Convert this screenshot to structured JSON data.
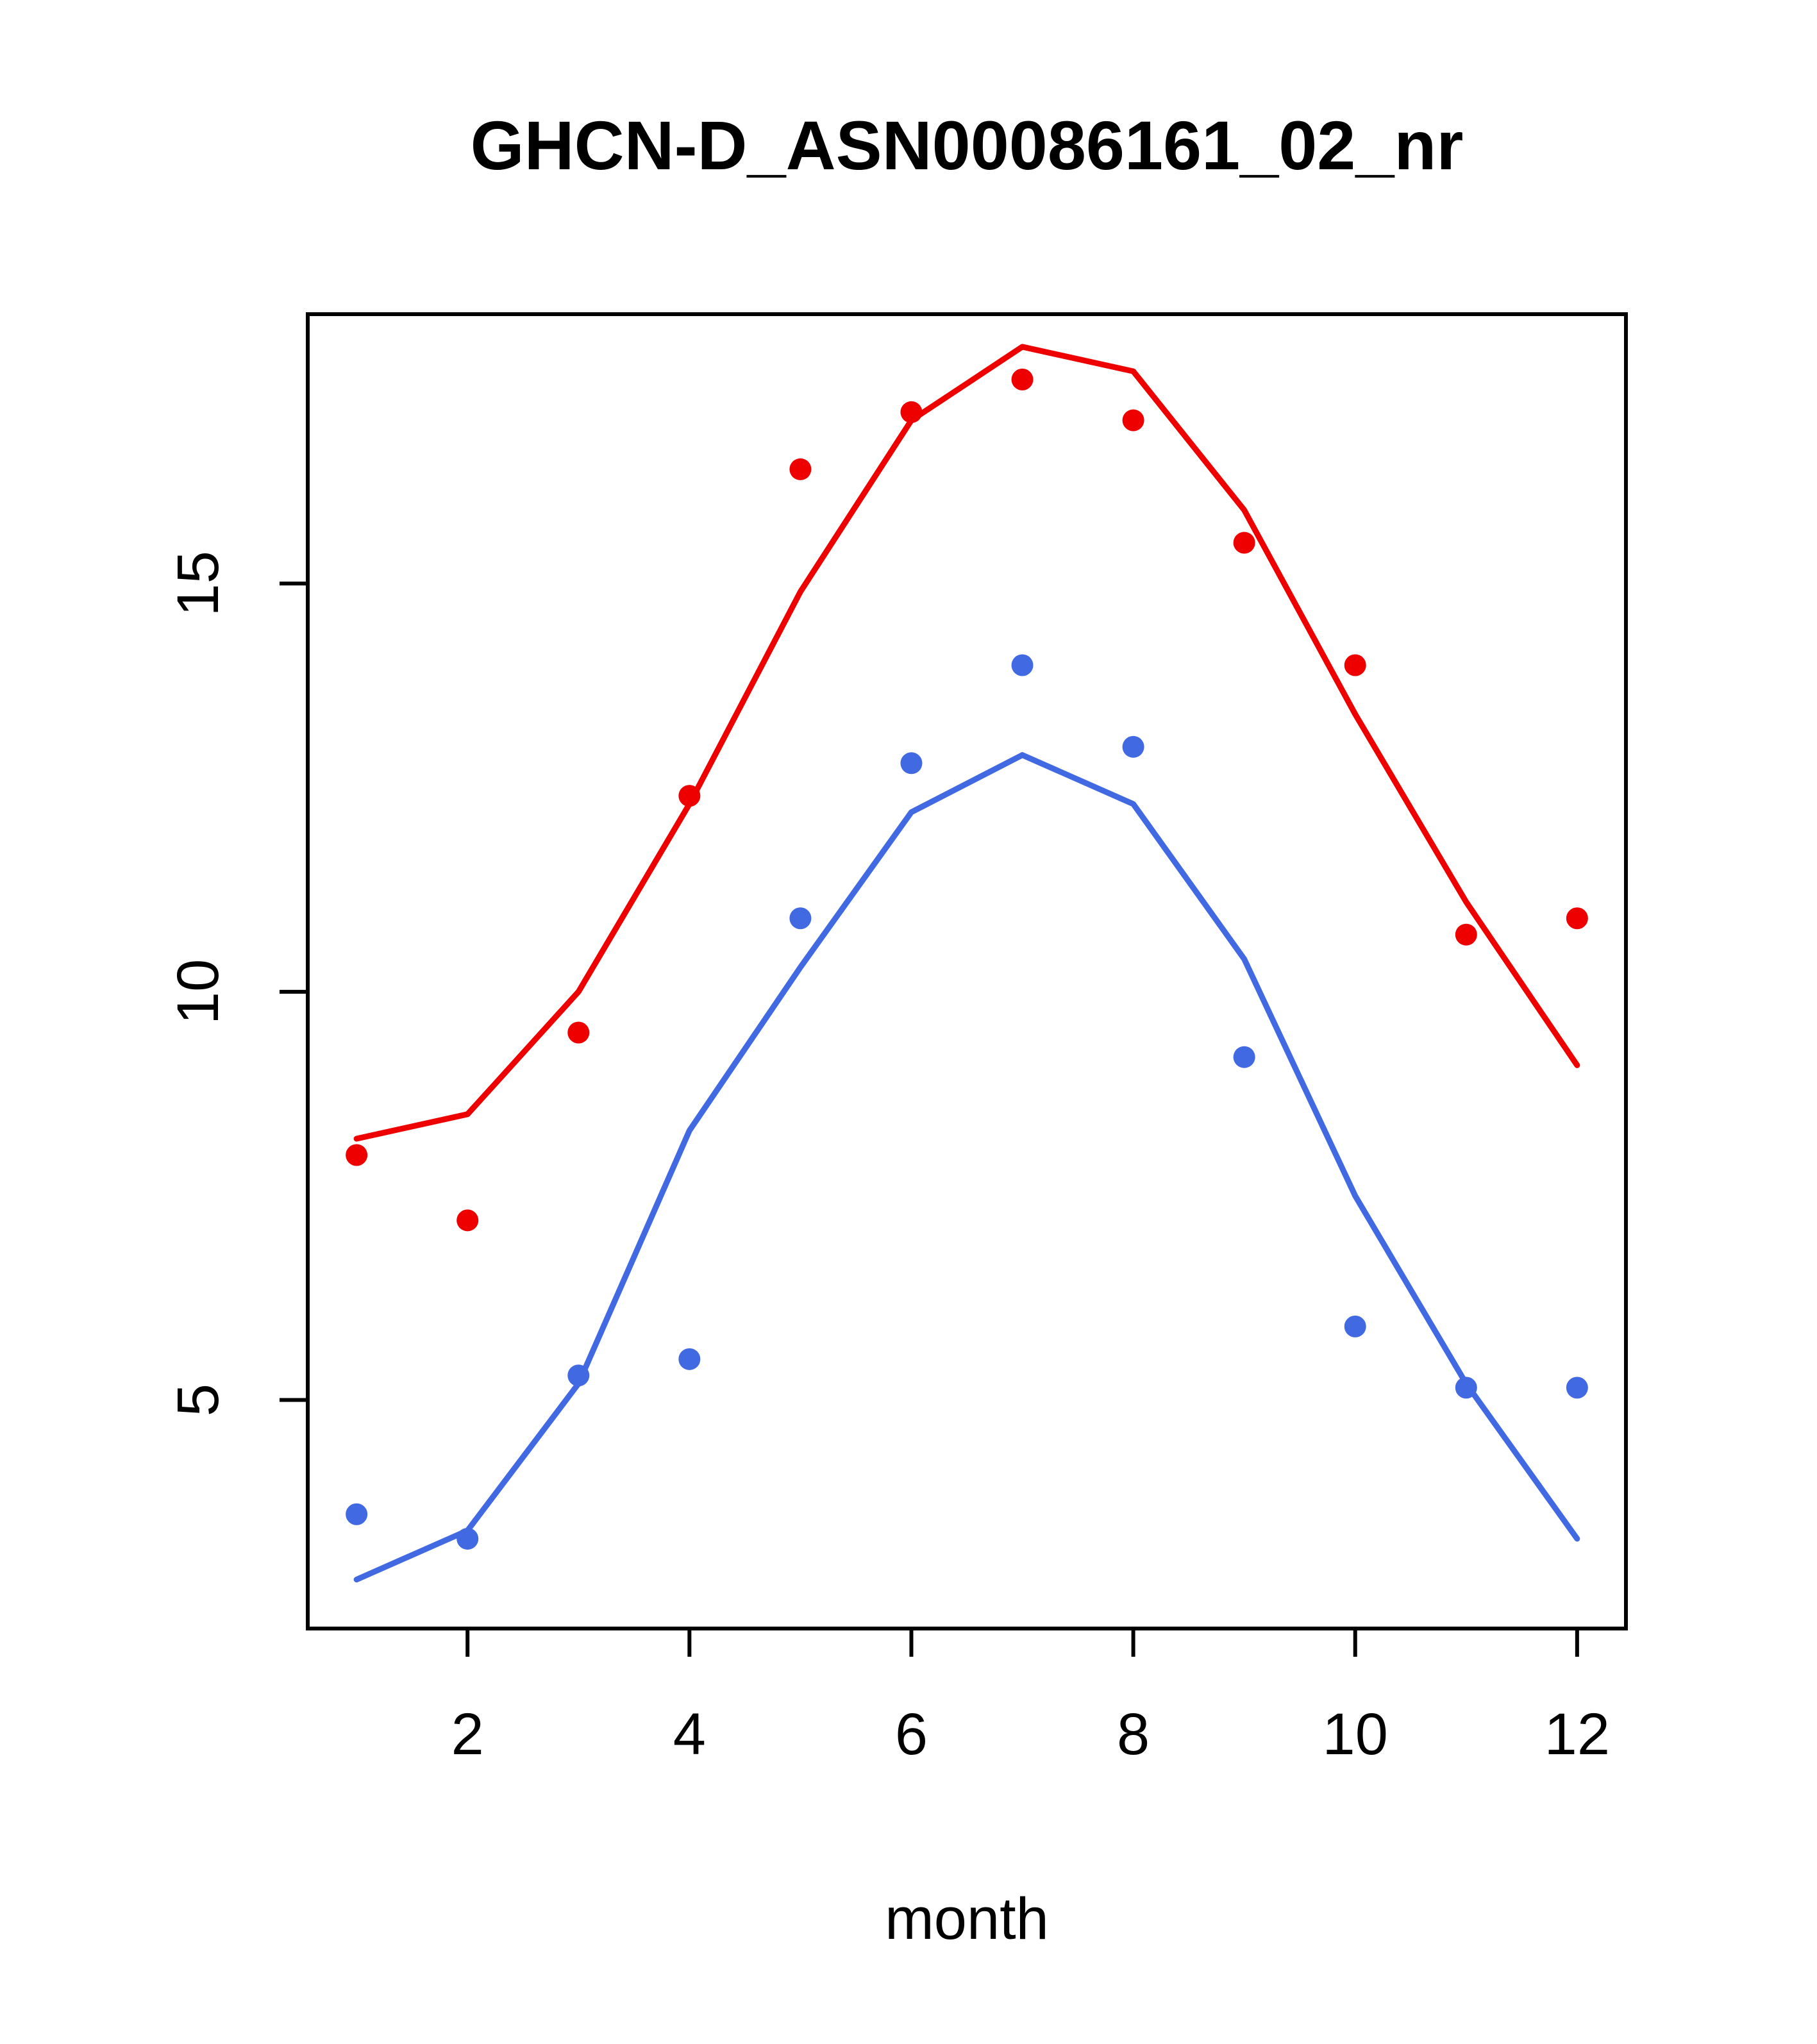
{
  "chart_data": {
    "type": "line",
    "title": "GHCN-D_ASN00086161_02_nr",
    "xlabel": "month",
    "ylabel": "",
    "grid": false,
    "legend": "none",
    "x": [
      1,
      2,
      3,
      4,
      5,
      6,
      7,
      8,
      9,
      10,
      11,
      12
    ],
    "xticks": [
      2,
      4,
      6,
      8,
      10,
      12
    ],
    "yticks": [
      5,
      10,
      15
    ],
    "xlim": [
      0.56,
      12.44
    ],
    "ylim": [
      2.2,
      18.3
    ],
    "colors": {
      "red_series": "#EE0000",
      "blue_series": "#4169E1"
    },
    "series": [
      {
        "name": "red-line",
        "draw": "line",
        "color": "#EE0000",
        "values": [
          8.2,
          8.5,
          10.0,
          12.3,
          14.9,
          17.0,
          17.9,
          17.6,
          15.9,
          13.4,
          11.1,
          9.1
        ]
      },
      {
        "name": "blue-line",
        "draw": "line",
        "color": "#4169E1",
        "values": [
          2.8,
          3.4,
          5.2,
          8.3,
          10.3,
          12.2,
          12.9,
          12.3,
          10.4,
          7.5,
          5.2,
          3.3
        ]
      },
      {
        "name": "red-points",
        "draw": "points",
        "color": "#EE0000",
        "values": [
          8.0,
          7.2,
          9.5,
          12.4,
          16.4,
          17.1,
          17.5,
          17.0,
          15.5,
          14.0,
          10.7,
          10.9
        ]
      },
      {
        "name": "blue-points",
        "draw": "points",
        "color": "#4169E1",
        "values": [
          3.6,
          3.3,
          5.3,
          5.5,
          10.9,
          12.8,
          14.0,
          13.0,
          9.2,
          5.9,
          5.15,
          5.15
        ]
      }
    ]
  }
}
